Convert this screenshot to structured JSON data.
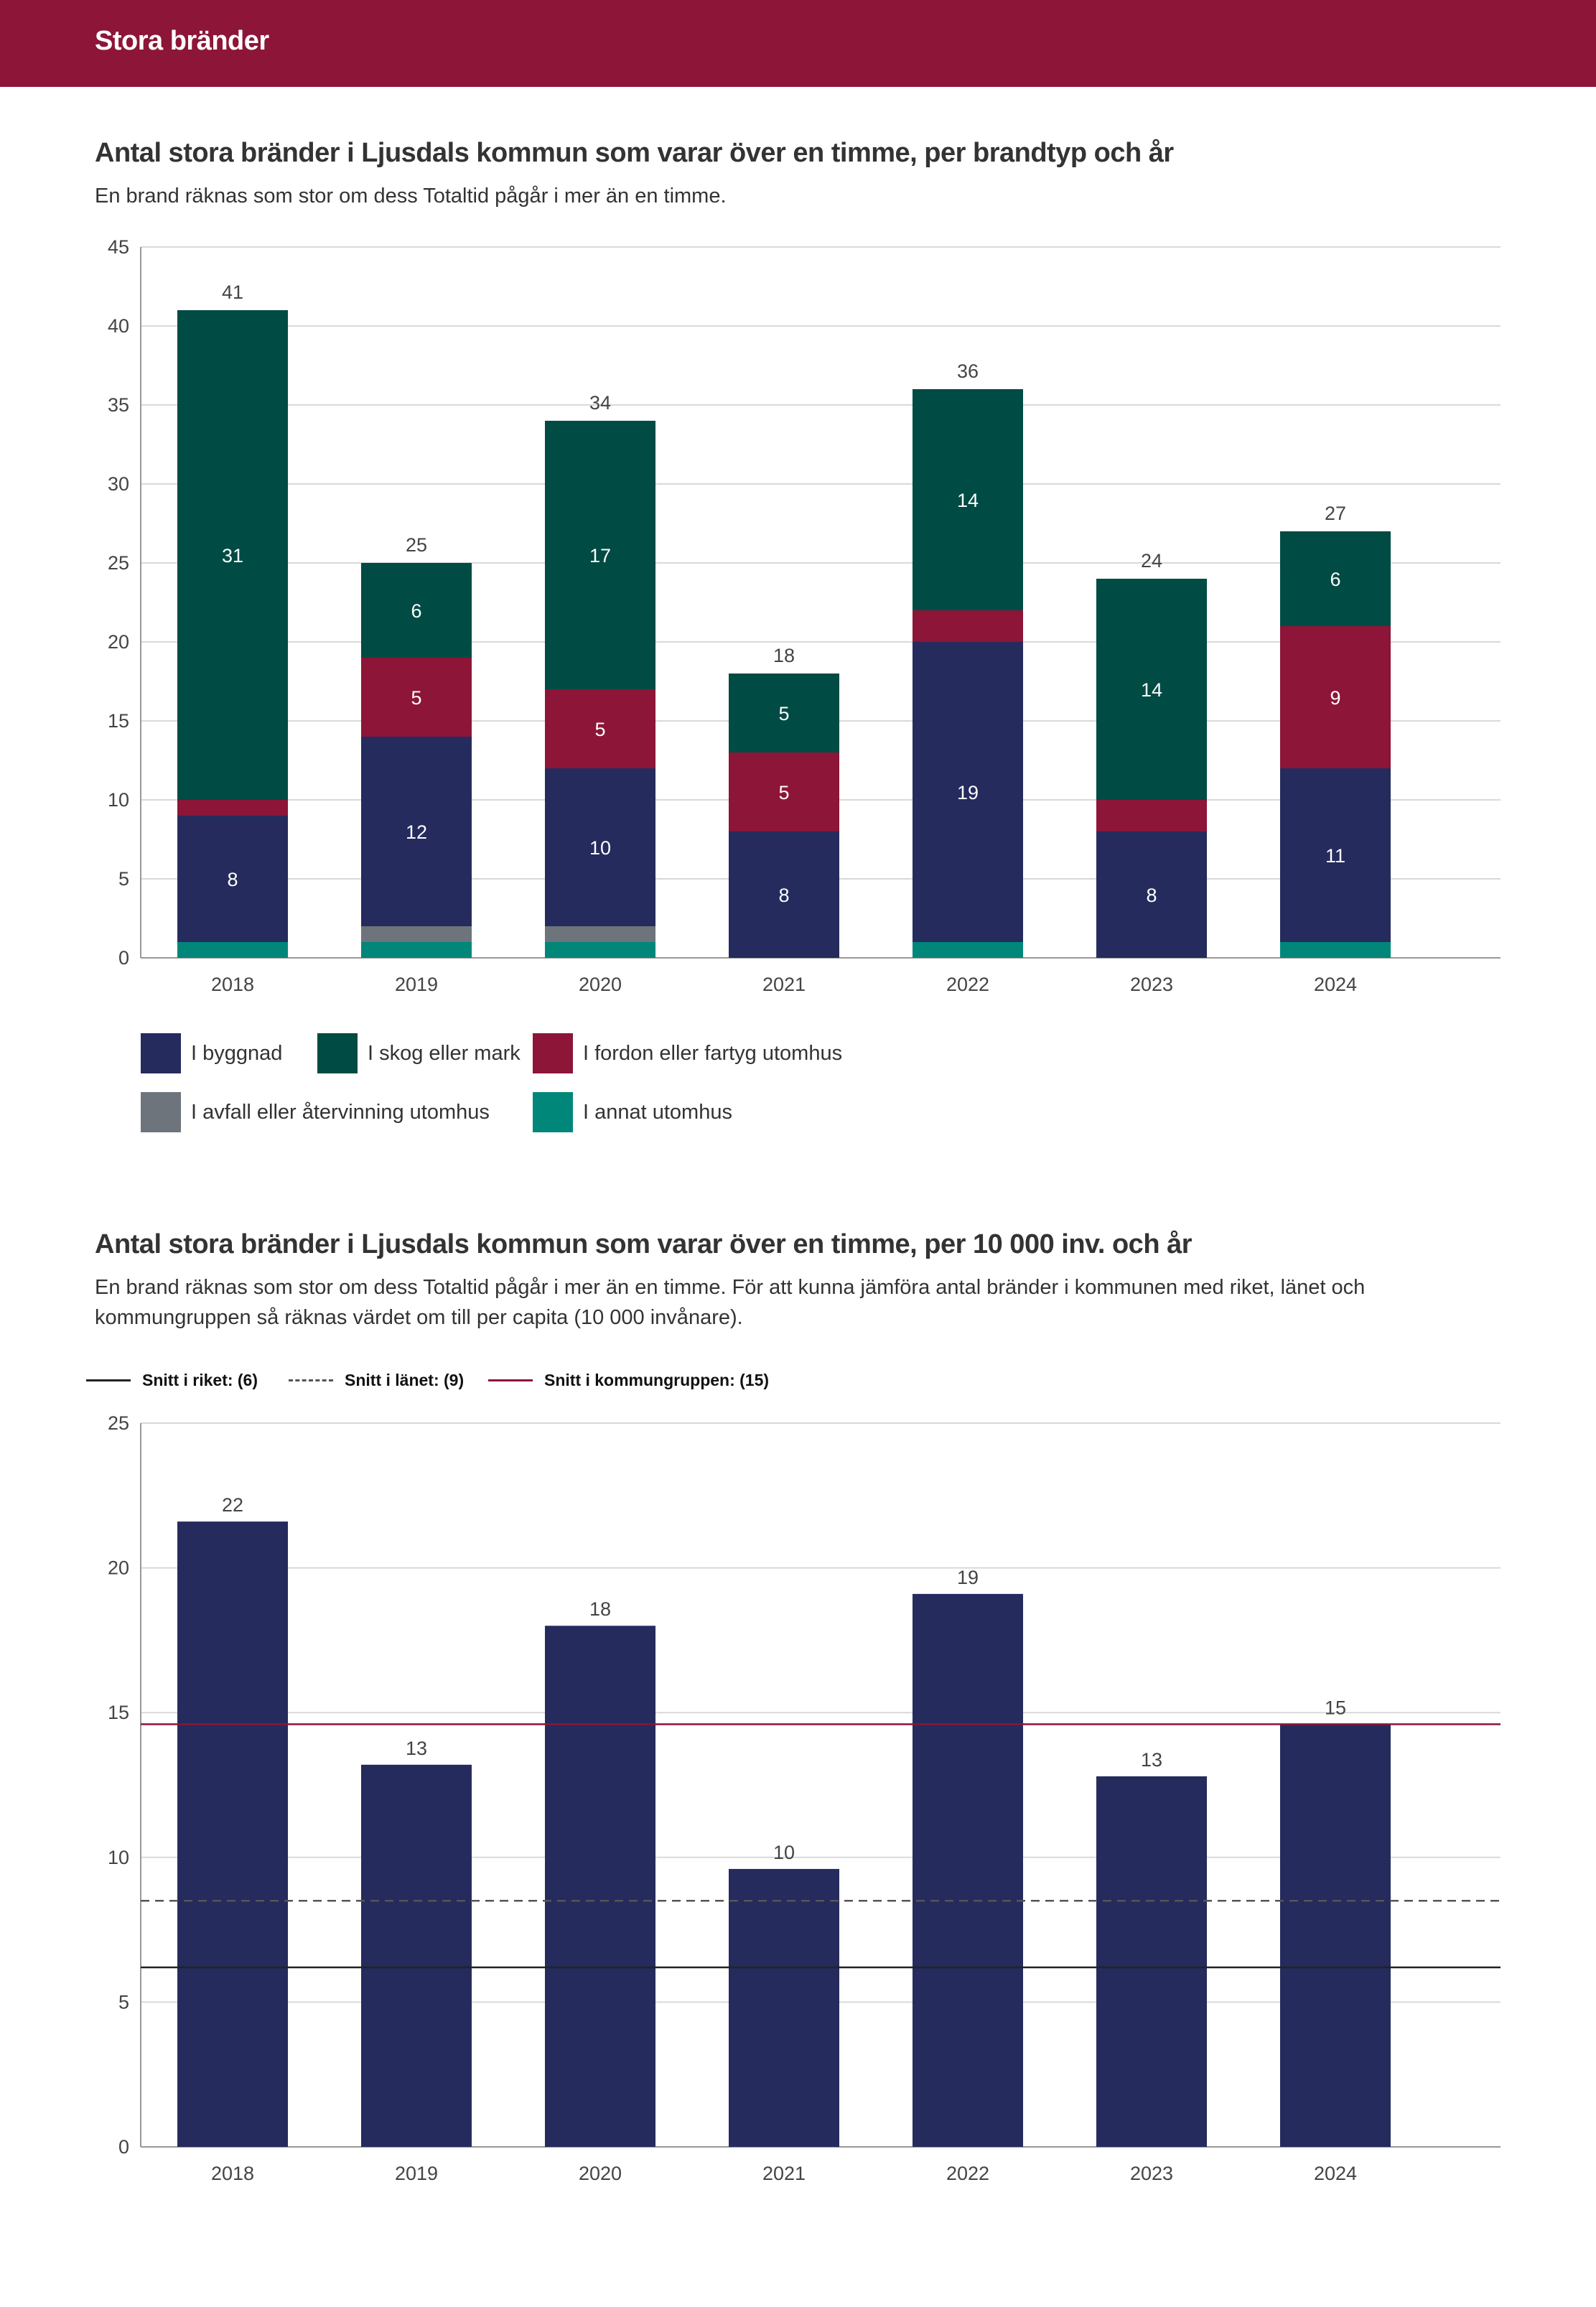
{
  "page": {
    "header_title": "Stora bränder"
  },
  "chart1": {
    "title": "Antal stora bränder i Ljusdals kommun som varar över en timme, per brandtyp och år",
    "subtitle": "En brand räknas som stor om dess Totaltid pågår i mer än en timme."
  },
  "chart2": {
    "title": "Antal stora bränder i Ljusdals kommun som varar över en timme, per 10 000 inv. och år",
    "subtitle": "En brand räknas som stor om dess Totaltid pågår i mer än en timme. För att kunna jämföra antal bränder i kommunen med riket, länet och kommungruppen så räknas värdet om till per capita (10 000 invånare)."
  },
  "colors": {
    "header": "#8c1538",
    "byggnad": "#252b5c",
    "skog": "#004b43",
    "fordon": "#8c1538",
    "avfall": "#6e747c",
    "annat": "#00877a",
    "grid": "#d9d9d9",
    "riket_line": "#222222",
    "lanet_line": "#555555",
    "kommungrupp_line": "#8c1538"
  },
  "chart_data": [
    {
      "type": "bar",
      "stacked": true,
      "title": "Antal stora bränder i Ljusdals kommun som varar över en timme, per brandtyp och år",
      "categories": [
        "2018",
        "2019",
        "2020",
        "2021",
        "2022",
        "2023",
        "2024"
      ],
      "ylim": [
        0,
        45
      ],
      "yticks": [
        0,
        5,
        10,
        15,
        20,
        25,
        30,
        35,
        40,
        45
      ],
      "grid": true,
      "series": [
        {
          "name": "I annat utomhus",
          "key": "annat",
          "values": [
            1,
            1,
            1,
            0,
            1,
            0,
            1
          ],
          "labels": [
            null,
            null,
            null,
            null,
            null,
            null,
            null
          ]
        },
        {
          "name": "I avfall eller återvinning utomhus",
          "key": "avfall",
          "values": [
            0,
            1,
            1,
            0,
            0,
            0,
            0
          ],
          "labels": [
            null,
            null,
            null,
            null,
            null,
            null,
            null
          ]
        },
        {
          "name": "I byggnad",
          "key": "byggnad",
          "values": [
            8,
            12,
            10,
            8,
            19,
            8,
            11
          ],
          "labels": [
            "8",
            "12",
            "10",
            "8",
            "19",
            "8",
            "11"
          ]
        },
        {
          "name": "I fordon eller fartyg utomhus",
          "key": "fordon",
          "values": [
            1,
            5,
            5,
            5,
            2,
            2,
            9
          ],
          "labels": [
            null,
            "5",
            "5",
            "5",
            null,
            null,
            "9"
          ]
        },
        {
          "name": "I skog eller mark",
          "key": "skog",
          "values": [
            31,
            6,
            17,
            5,
            14,
            14,
            6
          ],
          "labels": [
            "31",
            "6",
            "17",
            "5",
            "14",
            "14",
            "6"
          ]
        }
      ],
      "totals": [
        "41",
        "25",
        "34",
        "18",
        "36",
        "24",
        "27"
      ],
      "legend": [
        {
          "label": "I byggnad",
          "key": "byggnad"
        },
        {
          "label": "I skog eller mark",
          "key": "skog"
        },
        {
          "label": "I fordon eller fartyg utomhus",
          "key": "fordon"
        },
        {
          "label": "I avfall eller återvinning utomhus",
          "key": "avfall"
        },
        {
          "label": "I annat utomhus",
          "key": "annat"
        }
      ]
    },
    {
      "type": "bar",
      "title": "Antal stora bränder i Ljusdals kommun som varar över en timme, per 10 000 inv. och år",
      "categories": [
        "2018",
        "2019",
        "2020",
        "2021",
        "2022",
        "2023",
        "2024"
      ],
      "values": [
        21.6,
        13.2,
        18.0,
        9.6,
        19.1,
        12.8,
        14.6
      ],
      "value_labels": [
        "22",
        "13",
        "18",
        "10",
        "19",
        "13",
        "15"
      ],
      "ylim": [
        0,
        25
      ],
      "yticks": [
        0,
        5,
        10,
        15,
        20,
        25
      ],
      "grid": true,
      "reference_lines": [
        {
          "label": "Snitt i riket: (6)",
          "value": 6.2,
          "style": "solid",
          "key": "riket_line"
        },
        {
          "label": "Snitt i länet: (9)",
          "value": 8.5,
          "style": "dashed",
          "key": "lanet_line"
        },
        {
          "label": "Snitt i kommungruppen: (15)",
          "value": 14.6,
          "style": "solid",
          "key": "kommungrupp_line"
        }
      ]
    }
  ]
}
